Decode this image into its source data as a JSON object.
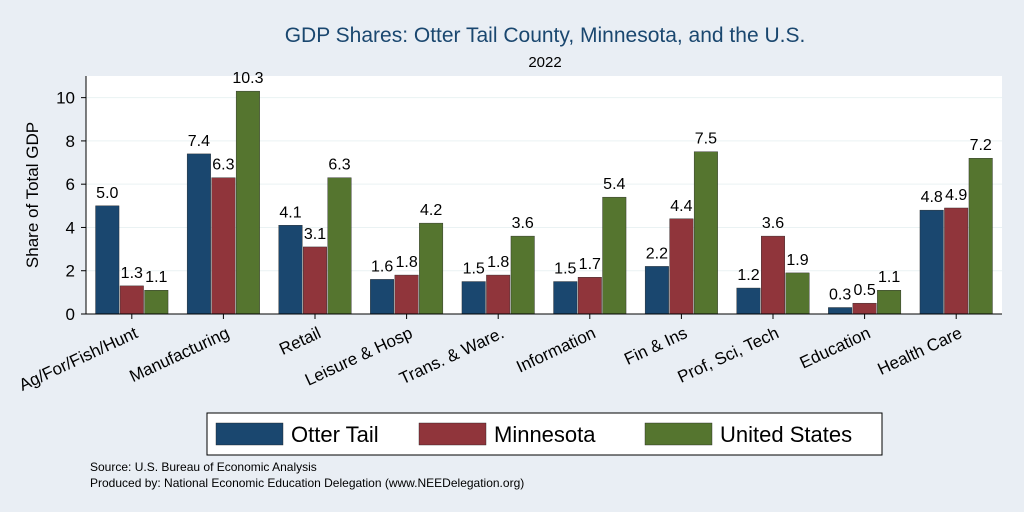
{
  "chart_data": {
    "type": "bar",
    "title": "GDP Shares: Otter Tail County, Minnesota, and the U.S.",
    "subtitle": "2022",
    "ylabel": "Share of Total GDP",
    "xlabel": "",
    "ylim": [
      0,
      11
    ],
    "yticks": [
      0,
      2,
      4,
      6,
      8,
      10
    ],
    "grid": true,
    "legend_position": "bottom",
    "categories": [
      "Ag/For/Fish/Hunt",
      "Manufacturing",
      "Retail",
      "Leisure & Hosp",
      "Trans. & Ware.",
      "Information",
      "Fin & Ins",
      "Prof, Sci, Tech",
      "Education",
      "Health Care"
    ],
    "series": [
      {
        "name": "Otter Tail",
        "color": "#1a476f",
        "values": [
          5.0,
          7.4,
          4.1,
          1.6,
          1.5,
          1.5,
          2.2,
          1.2,
          0.3,
          4.8
        ]
      },
      {
        "name": "Minnesota",
        "color": "#90353b",
        "values": [
          1.3,
          6.3,
          3.1,
          1.8,
          1.8,
          1.7,
          4.4,
          3.6,
          0.5,
          4.9
        ]
      },
      {
        "name": "United States",
        "color": "#55752f",
        "values": [
          1.1,
          10.3,
          6.3,
          4.2,
          3.6,
          5.4,
          7.5,
          1.9,
          1.1,
          7.2
        ]
      }
    ]
  },
  "notes": {
    "source": "Source: U.S. Bureau of Economic Analysis",
    "produced_by": "Produced by: National Economic Education Delegation (www.NEEDelegation.org)"
  }
}
